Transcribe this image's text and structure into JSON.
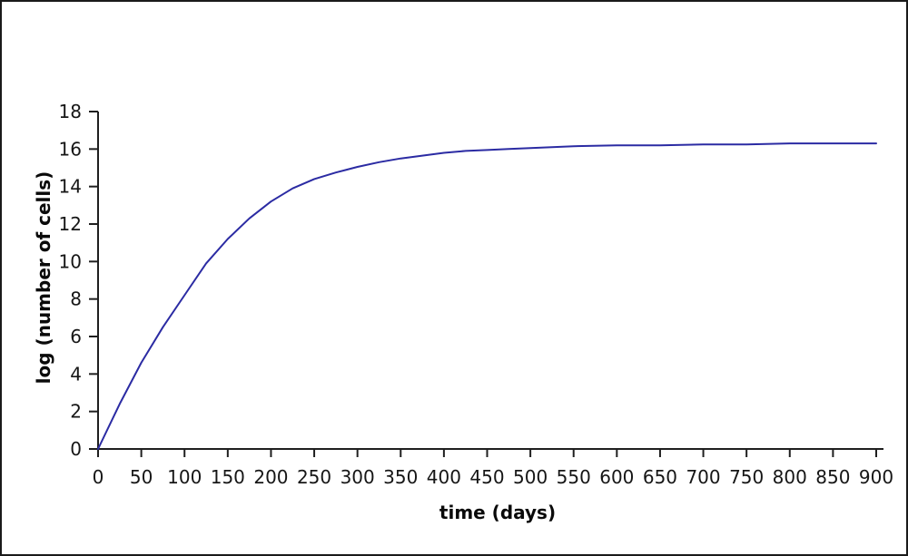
{
  "figure": {
    "background": "#ffffff",
    "border_color": "#1a1a1a"
  },
  "chart_data": {
    "type": "line",
    "title": "",
    "xlabel": "time (days)",
    "ylabel": "log (number of cells)",
    "x_ticks": [
      0,
      50,
      100,
      150,
      200,
      250,
      300,
      350,
      400,
      450,
      500,
      550,
      600,
      650,
      700,
      750,
      800,
      850,
      900
    ],
    "y_ticks": [
      0,
      2,
      4,
      6,
      8,
      10,
      12,
      14,
      16,
      18
    ],
    "xlim": [
      0,
      900
    ],
    "ylim": [
      0,
      18
    ],
    "grid": false,
    "legend": false,
    "line_color": "#2b2ba3",
    "axis_color": "#1f1f1f",
    "tick_label_color": "#161616",
    "series": [
      {
        "name": "log (number of cells)",
        "x": [
          0,
          25,
          50,
          75,
          100,
          125,
          150,
          175,
          200,
          225,
          250,
          275,
          300,
          325,
          350,
          375,
          400,
          425,
          450,
          475,
          500,
          550,
          600,
          650,
          700,
          750,
          800,
          850,
          900
        ],
        "y": [
          0,
          2.4,
          4.6,
          6.5,
          8.2,
          9.9,
          11.2,
          12.3,
          13.2,
          13.9,
          14.4,
          14.75,
          15.05,
          15.3,
          15.5,
          15.65,
          15.8,
          15.9,
          15.95,
          16.0,
          16.05,
          16.15,
          16.2,
          16.2,
          16.25,
          16.25,
          16.3,
          16.3,
          16.3
        ]
      }
    ]
  }
}
